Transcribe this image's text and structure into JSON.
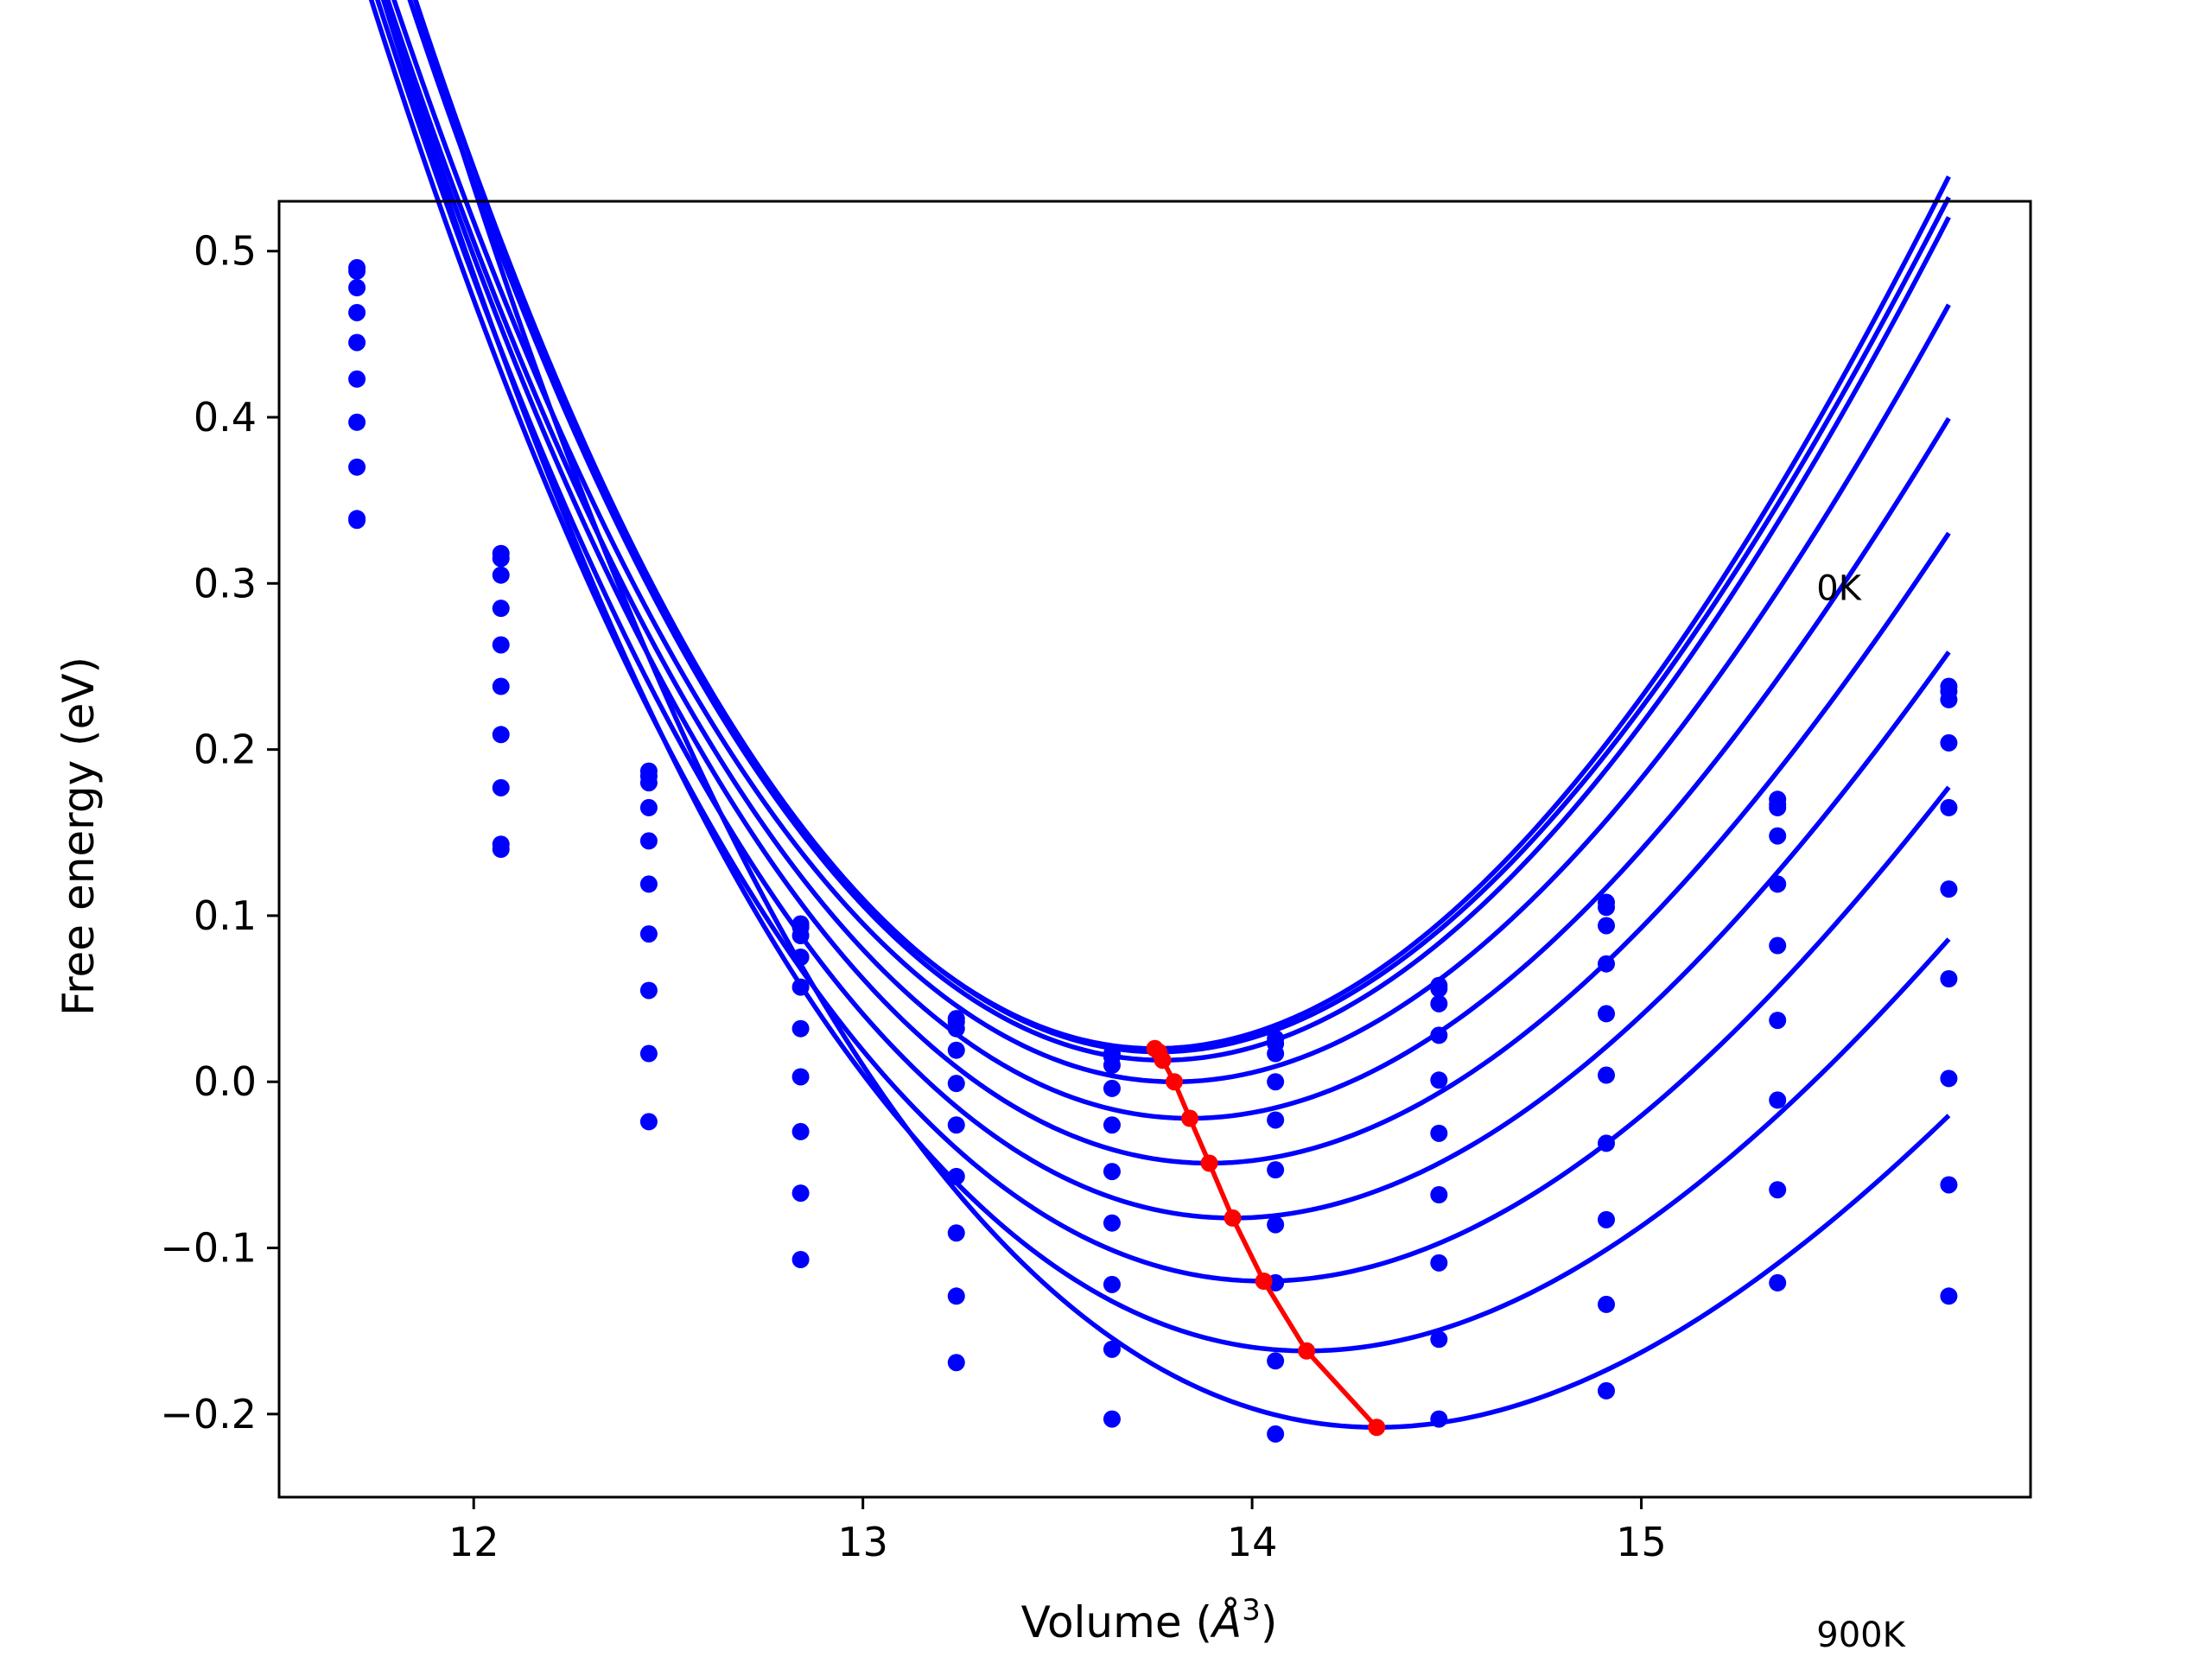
{
  "chart_data": {
    "type": "line",
    "title": "",
    "xlabel_prefix": "Volume (",
    "xlabel_unit_base": "Å",
    "xlabel_unit_exp": "3",
    "xlabel_suffix": ")",
    "ylabel": "Free energy (eV)",
    "xlim": [
      11.5,
      16.0
    ],
    "ylim": [
      -0.25,
      0.53
    ],
    "xticks": [
      {
        "value": 12,
        "label": "12"
      },
      {
        "value": 13,
        "label": "13"
      },
      {
        "value": 14,
        "label": "14"
      },
      {
        "value": 15,
        "label": "15"
      }
    ],
    "yticks": [
      {
        "value": -0.2,
        "label": "−0.2"
      },
      {
        "value": -0.1,
        "label": "−0.1"
      },
      {
        "value": 0.0,
        "label": "0.0"
      },
      {
        "value": 0.1,
        "label": "0.1"
      },
      {
        "value": 0.2,
        "label": "0.2"
      },
      {
        "value": 0.3,
        "label": "0.3"
      },
      {
        "value": 0.4,
        "label": "0.4"
      },
      {
        "value": 0.5,
        "label": "0.5"
      }
    ],
    "annotations": [
      {
        "text": "0K",
        "x": 15.45,
        "y": 0.29
      },
      {
        "text": "900K",
        "x": 15.45,
        "y": -0.34
      }
    ],
    "grid": false,
    "x_points": [
      11.7,
      12.07,
      12.45,
      12.84,
      13.24,
      13.64,
      14.06,
      14.48,
      14.91,
      15.35,
      15.79
    ],
    "series": [
      {
        "color": "#0000ff",
        "min_v": 13.75,
        "min_f": 0.02,
        "k": 0.15,
        "c": -0.0117,
        "points": [
          0.488,
          0.318,
          0.187,
          0.095,
          0.038,
          0.017,
          0.026,
          0.058,
          0.108,
          0.17,
          0.238
        ]
      },
      {
        "color": "#0000ff",
        "min_v": 13.76,
        "min_f": 0.018,
        "k": 0.15,
        "c": -0.0124,
        "points": [
          0.49,
          0.315,
          0.184,
          0.093,
          0.036,
          0.015,
          0.023,
          0.056,
          0.105,
          0.167,
          0.235
        ]
      },
      {
        "color": "#0000ff",
        "min_v": 13.77,
        "min_f": 0.013,
        "k": 0.148,
        "c": -0.0117,
        "points": [
          0.478,
          0.305,
          0.18,
          0.088,
          0.032,
          0.01,
          0.017,
          0.047,
          0.094,
          0.165,
          0.23
        ]
      },
      {
        "color": "#0000ff",
        "min_v": 13.8,
        "min_f": 0.0,
        "k": 0.14,
        "c": -0.011,
        "points": [
          0.463,
          0.285,
          0.165,
          0.075,
          0.019,
          -0.004,
          0.0,
          0.028,
          0.071,
          0.148,
          0.204
        ]
      },
      {
        "color": "#0000ff",
        "min_v": 13.84,
        "min_f": -0.022,
        "k": 0.134,
        "c": -0.0119,
        "points": [
          0.445,
          0.263,
          0.145,
          0.057,
          -0.001,
          -0.026,
          -0.023,
          0.001,
          0.041,
          0.119,
          0.165
        ]
      },
      {
        "color": "#0000ff",
        "min_v": 13.89,
        "min_f": -0.049,
        "k": 0.129,
        "c": -0.0126,
        "points": [
          0.423,
          0.238,
          0.119,
          0.032,
          -0.026,
          -0.054,
          -0.053,
          -0.031,
          0.004,
          0.082,
          0.116
        ]
      },
      {
        "color": "#0000ff",
        "min_v": 13.95,
        "min_f": -0.082,
        "k": 0.124,
        "c": -0.0127,
        "points": [
          0.397,
          0.209,
          0.089,
          0.003,
          -0.057,
          -0.085,
          -0.086,
          -0.068,
          -0.037,
          0.037,
          0.062
        ]
      },
      {
        "color": "#0000ff",
        "min_v": 14.03,
        "min_f": -0.12,
        "k": 0.118,
        "c": -0.0125,
        "points": [
          0.37,
          0.177,
          0.055,
          -0.03,
          -0.091,
          -0.122,
          -0.121,
          -0.109,
          -0.083,
          -0.011,
          0.002
        ]
      },
      {
        "color": "#0000ff",
        "min_v": 14.14,
        "min_f": -0.162,
        "k": 0.113,
        "c": -0.0133,
        "points": [
          0.339,
          0.143,
          0.017,
          -0.067,
          -0.129,
          -0.161,
          -0.168,
          -0.155,
          -0.134,
          -0.065,
          -0.062
        ]
      },
      {
        "color": "#0000ff",
        "min_v": 14.32,
        "min_f": -0.208,
        "k": 0.107,
        "c": -0.0137,
        "points": [
          0.338,
          0.14,
          -0.024,
          -0.107,
          -0.169,
          -0.203,
          -0.212,
          -0.203,
          -0.186,
          -0.121,
          -0.129
        ]
      }
    ],
    "minima_path": {
      "color": "#ff0000",
      "x": [
        13.75,
        13.76,
        13.77,
        13.8,
        13.84,
        13.89,
        13.95,
        14.03,
        14.14,
        14.32
      ],
      "y": [
        0.02,
        0.018,
        0.013,
        0.0,
        -0.022,
        -0.049,
        -0.082,
        -0.12,
        -0.162,
        -0.208
      ]
    }
  }
}
